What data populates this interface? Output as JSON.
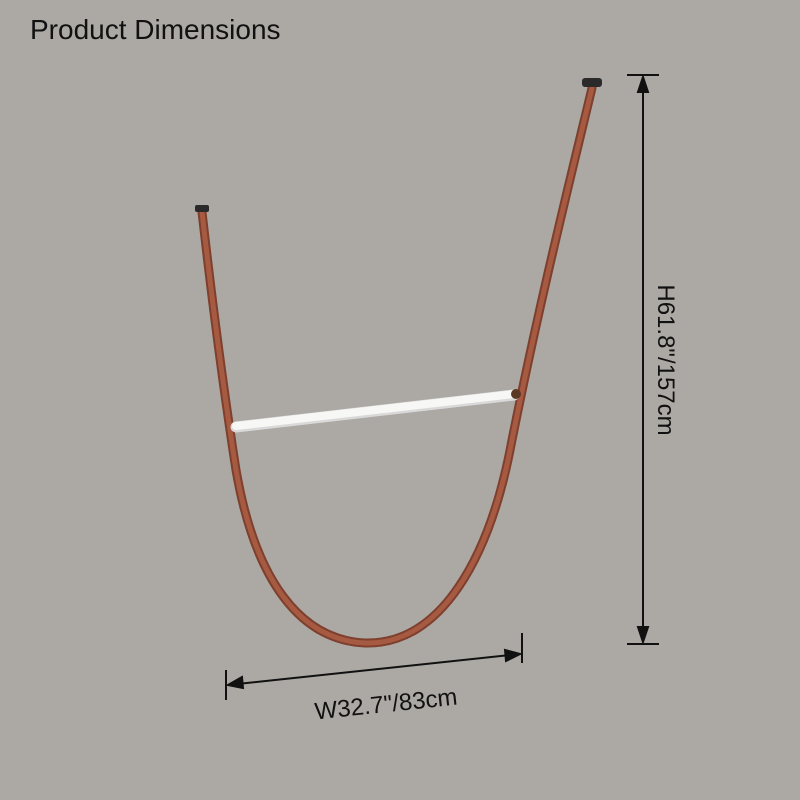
{
  "header": {
    "title": "Product Dimensions"
  },
  "dimensions": {
    "width": "W32.7\"/83cm",
    "height": "H61.8\"/157cm"
  }
}
